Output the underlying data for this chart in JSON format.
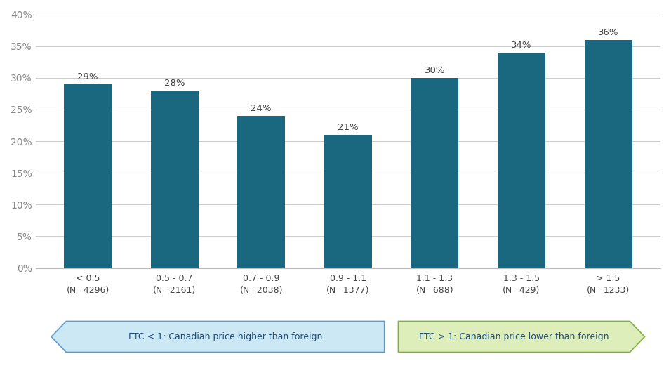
{
  "categories": [
    "< 0.5\n(N=4296)",
    "0.5 - 0.7\n(N=2161)",
    "0.7 - 0.9\n(N=2038)",
    "0.9 - 1.1\n(N=1377)",
    "1.1 - 1.3\n(N=688)",
    "1.3 - 1.5\n(N=429)",
    "> 1.5\n(N=1233)"
  ],
  "values": [
    29,
    28,
    24,
    21,
    30,
    34,
    36
  ],
  "bar_color": "#1a6880",
  "ylim": [
    0,
    40
  ],
  "yticks": [
    0,
    5,
    10,
    15,
    20,
    25,
    30,
    35,
    40
  ],
  "ytick_labels": [
    "0%",
    "5%",
    "10%",
    "15%",
    "20%",
    "25%",
    "30%",
    "35%",
    "40%"
  ],
  "background_color": "#ffffff",
  "grid_color": "#cccccc",
  "label_fontsize": 9,
  "value_fontsize": 9.5,
  "tick_fontsize": 10,
  "arrow_left_text": "FTC < 1: Canadian price higher than foreign",
  "arrow_right_text": "FTC > 1: Canadian price lower than foreign",
  "arrow_left_bg": "#cce8f4",
  "arrow_right_bg": "#ddeebb",
  "arrow_border_color": "#5b9bd5",
  "arrow_text_color": "#1f4e79",
  "arrow_right_border_color": "#7faf3f"
}
